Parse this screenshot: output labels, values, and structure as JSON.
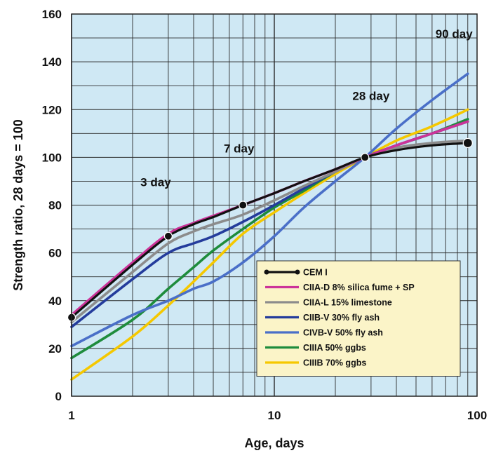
{
  "chart_data": {
    "type": "line",
    "title": "",
    "xlabel": "Age, days",
    "ylabel": "Strength ratio, 28 days = 100",
    "x_scale": "log",
    "xlim": [
      1,
      100
    ],
    "ylim": [
      0,
      160
    ],
    "x_ticks": [
      1,
      10,
      100
    ],
    "y_ticks": [
      0,
      20,
      40,
      60,
      80,
      100,
      120,
      140,
      160
    ],
    "grid": true,
    "background_color": "#cfe8f4",
    "legend_position": "bottom-right",
    "annotations": [
      {
        "text": "3 day",
        "x": 2.6,
        "y": 88
      },
      {
        "text": "7 day",
        "x": 6.7,
        "y": 102
      },
      {
        "text": "28 day",
        "x": 30,
        "y": 124
      },
      {
        "text": "90 day",
        "x": 77,
        "y": 150
      }
    ],
    "series": [
      {
        "name": "CEM I",
        "color": "#111111",
        "markers": true,
        "x": [
          1,
          2,
          3,
          4,
          5,
          7,
          10,
          14,
          20,
          28,
          40,
          60,
          90
        ],
        "y": [
          33,
          55,
          67,
          72,
          75,
          80,
          85,
          90,
          95,
          100,
          103,
          105,
          106
        ]
      },
      {
        "name": "CIIA-D 8% silica fume + SP",
        "color": "#cc3399",
        "markers": false,
        "x": [
          1,
          2,
          3,
          4,
          5,
          7,
          10,
          14,
          20,
          28,
          40,
          60,
          90
        ],
        "y": [
          34,
          56,
          68,
          72.5,
          75.5,
          80,
          85,
          90,
          95,
          100,
          105,
          110,
          115
        ]
      },
      {
        "name": "CIIA-L 15% limestone",
        "color": "#8c8c8c",
        "markers": false,
        "x": [
          1,
          2,
          3,
          4,
          5,
          7,
          10,
          14,
          20,
          28,
          40,
          60,
          90
        ],
        "y": [
          31,
          52,
          64,
          69,
          72,
          76,
          82,
          88,
          94,
          100,
          104,
          106,
          107
        ]
      },
      {
        "name": "CIIB-V 30% fly ash",
        "color": "#243c9c",
        "markers": false,
        "x": [
          1,
          2,
          3,
          4,
          5,
          7,
          10,
          14,
          20,
          28,
          40,
          60,
          90
        ],
        "y": [
          29,
          49,
          60,
          64,
          67,
          73,
          80,
          87,
          94,
          100,
          105,
          110,
          115
        ]
      },
      {
        "name": "CIVB-V 50% fly ash",
        "color": "#4a6fc8",
        "markers": false,
        "x": [
          1,
          2,
          3,
          4,
          5,
          7,
          10,
          14,
          20,
          28,
          40,
          60,
          90
        ],
        "y": [
          21,
          34,
          40,
          45,
          48,
          56,
          67,
          79,
          90,
          100,
          112,
          124,
          135
        ]
      },
      {
        "name": "CIIIA 50% ggbs",
        "color": "#1e8c3c",
        "markers": false,
        "x": [
          1,
          2,
          3,
          4,
          5,
          7,
          10,
          14,
          20,
          28,
          40,
          60,
          90
        ],
        "y": [
          16,
          32,
          45,
          54,
          61,
          70,
          79,
          86,
          94,
          100,
          105,
          110,
          116
        ]
      },
      {
        "name": "CIIIB 70% ggbs",
        "color": "#f5c800",
        "markers": false,
        "x": [
          1,
          2,
          3,
          4,
          5,
          7,
          10,
          14,
          20,
          28,
          40,
          60,
          90
        ],
        "y": [
          7,
          25,
          38,
          48,
          56,
          68,
          77,
          85,
          93,
          100,
          107,
          113,
          120
        ]
      }
    ]
  }
}
